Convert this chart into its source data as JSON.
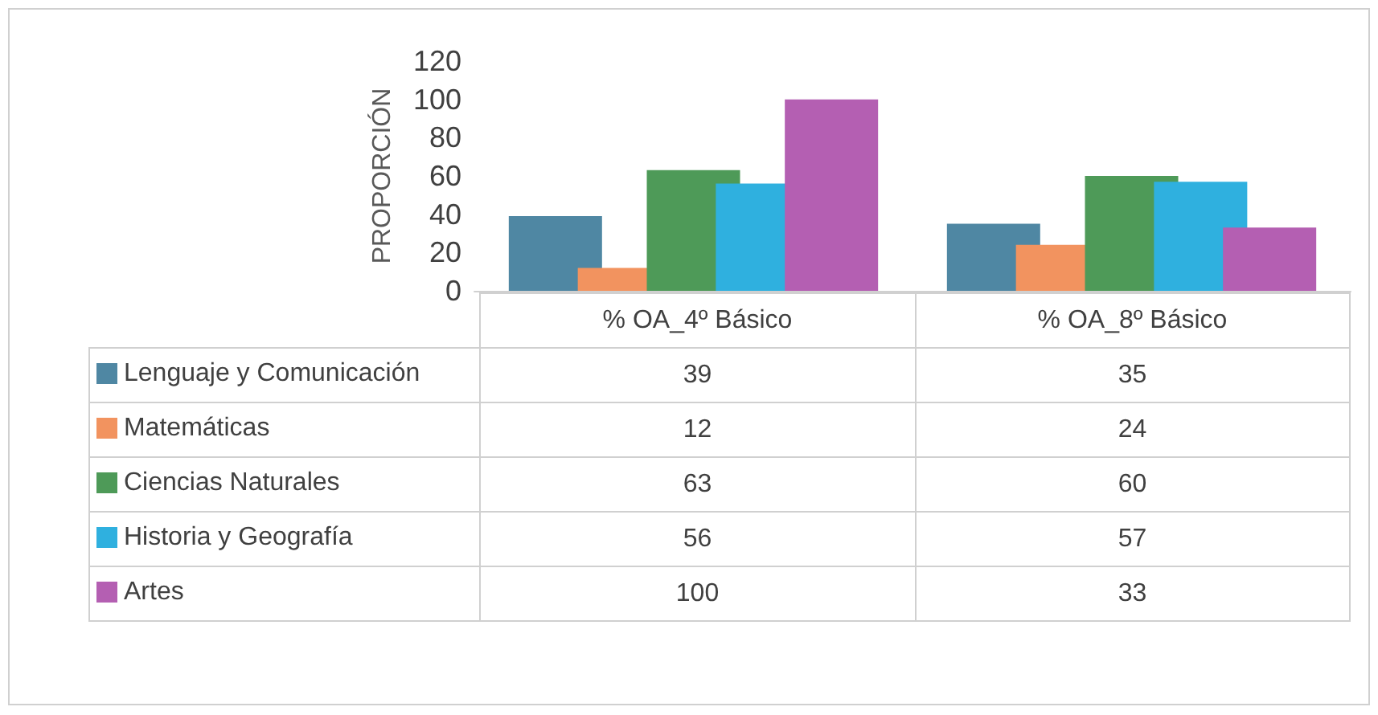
{
  "chart_data": {
    "type": "bar",
    "ylabel": "PROPORCIÓN",
    "categories": [
      "% OA_4º Básico",
      "% OA_8º Básico"
    ],
    "series": [
      {
        "name": "Lenguaje y Comunicación",
        "color": "#4f87a3",
        "values": [
          39,
          35
        ]
      },
      {
        "name": "Matemáticas",
        "color": "#f2935f",
        "values": [
          12,
          24
        ]
      },
      {
        "name": "Ciencias Naturales",
        "color": "#4e9a58",
        "values": [
          63,
          60
        ]
      },
      {
        "name": "Historia y Geografía",
        "color": "#2fb0df",
        "values": [
          56,
          57
        ]
      },
      {
        "name": "Artes",
        "color": "#b45fb2",
        "values": [
          100,
          33
        ]
      }
    ],
    "ylim": [
      0,
      120
    ],
    "yticks": [
      0,
      20,
      40,
      60,
      80,
      100,
      120
    ],
    "grid": false,
    "legend": "bottom left",
    "data_labels": true
  }
}
